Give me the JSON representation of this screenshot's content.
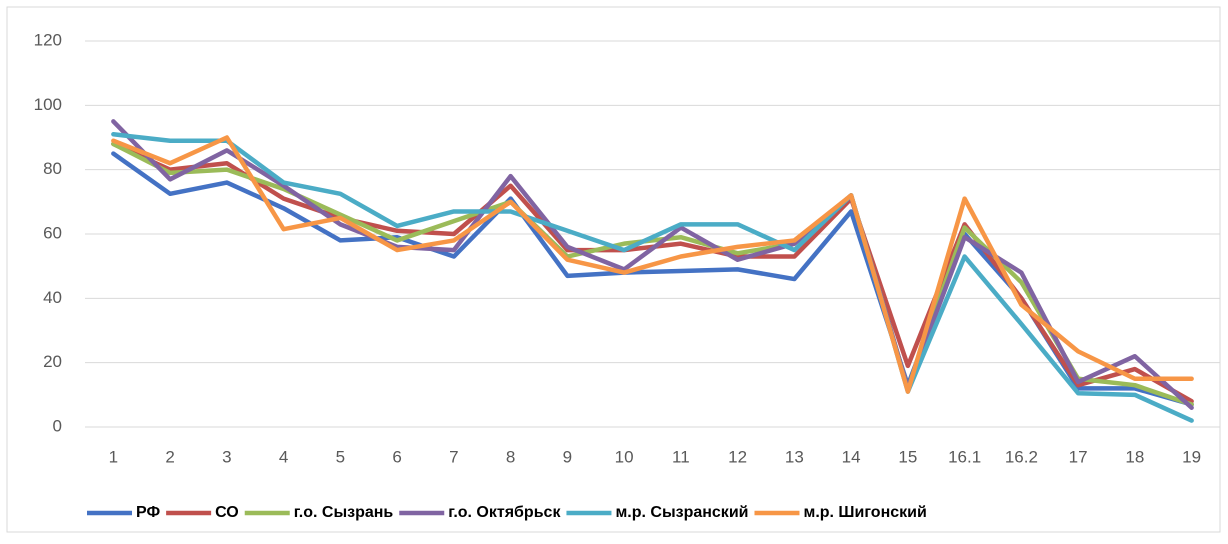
{
  "chart_data": {
    "type": "line",
    "categories": [
      "1",
      "2",
      "3",
      "4",
      "5",
      "6",
      "7",
      "8",
      "9",
      "10",
      "11",
      "12",
      "13",
      "14",
      "15",
      "16.1",
      "16.2",
      "17",
      "18",
      "19"
    ],
    "series": [
      {
        "name": "РФ",
        "color": "#4472c4",
        "values": [
          85,
          72.5,
          76,
          68,
          58,
          59,
          53,
          71,
          47,
          48,
          48.5,
          49,
          46,
          67,
          13,
          60,
          40,
          12,
          12,
          7
        ]
      },
      {
        "name": "СО",
        "color": "#c0504d",
        "values": [
          88,
          80,
          82,
          71,
          65,
          61,
          60,
          75,
          55,
          55,
          57,
          53,
          53,
          71,
          19,
          63,
          40,
          13,
          18,
          8
        ]
      },
      {
        "name": "г.о. Сызрань",
        "color": "#9bbb59",
        "values": [
          88,
          79,
          80,
          74,
          66,
          58,
          64,
          70,
          53,
          57,
          59,
          54,
          57,
          72,
          12,
          62,
          45,
          15,
          13,
          7
        ]
      },
      {
        "name": "г.о. Октябрьск",
        "color": "#8064a2",
        "values": [
          95,
          77,
          86,
          75,
          63,
          56,
          55,
          78,
          56,
          49,
          62,
          52,
          57,
          72,
          12,
          59,
          48,
          14,
          22,
          6
        ]
      },
      {
        "name": "м.р. Сызранский",
        "color": "#4bacc6",
        "values": [
          91,
          89,
          89,
          76,
          72.5,
          62.5,
          67,
          67,
          61,
          55,
          63,
          63,
          55,
          72,
          11,
          53,
          32,
          10.5,
          10,
          2
        ]
      },
      {
        "name": "м.р. Шигонский",
        "color": "#f79646",
        "values": [
          89,
          82,
          90,
          61.5,
          65,
          55,
          58,
          70,
          52,
          48,
          53,
          56,
          58,
          72,
          11,
          71,
          38,
          23.5,
          15,
          15
        ]
      }
    ],
    "ylim": [
      0,
      120
    ],
    "yticks": [
      0,
      20,
      40,
      60,
      80,
      100,
      120
    ],
    "grid": true,
    "legend": "bottom"
  }
}
